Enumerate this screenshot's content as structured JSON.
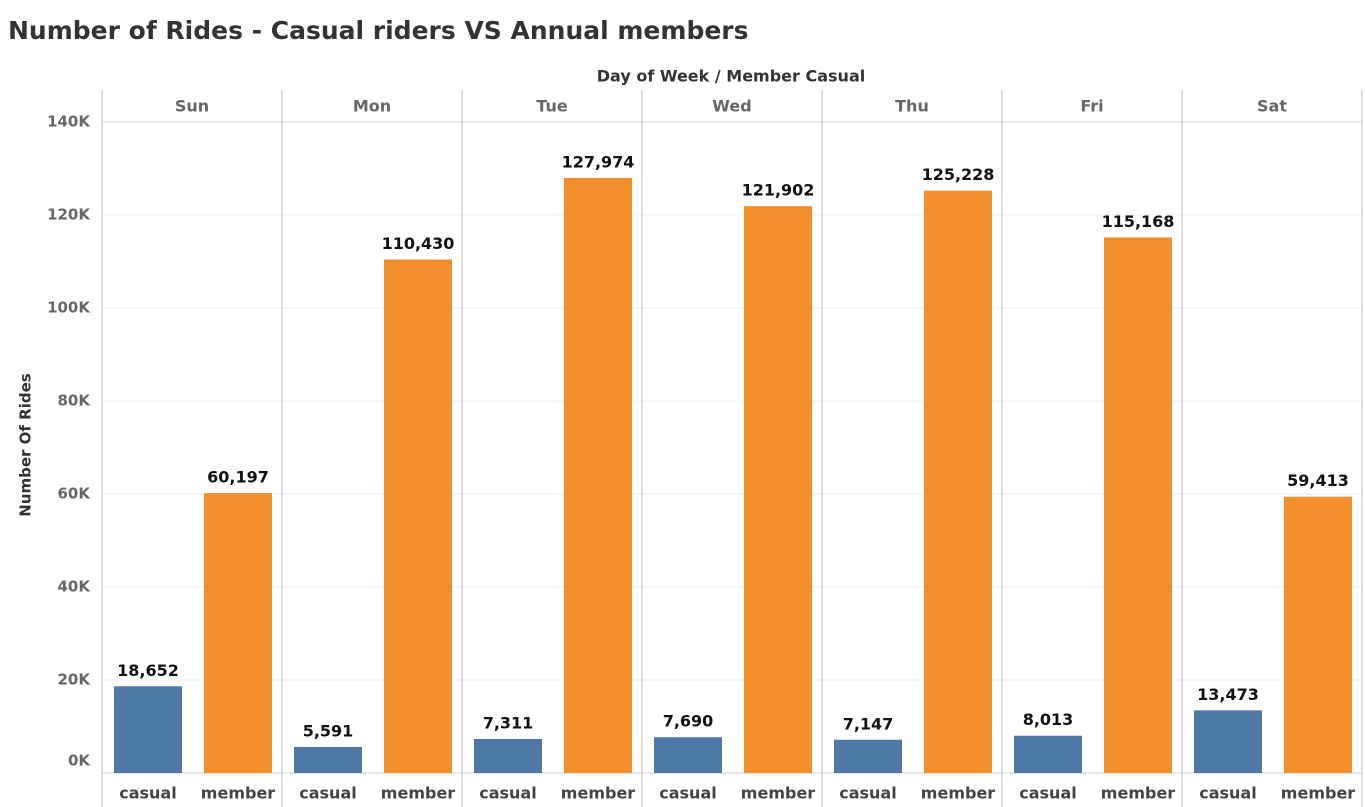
{
  "chart_data": {
    "type": "bar",
    "title": "Number of Rides - Casual riders VS Annual members",
    "header": "Day of Week  /  Member Casual",
    "y_label": "Number Of Rides",
    "categories": [
      "Sun",
      "Mon",
      "Tue",
      "Wed",
      "Thu",
      "Fri",
      "Sat"
    ],
    "series": [
      {
        "name": "casual",
        "color": "#4e79a7",
        "values": [
          18652,
          5591,
          7311,
          7690,
          7147,
          8013,
          13473
        ],
        "value_labels": [
          "18,652",
          "5,591",
          "7,311",
          "7,690",
          "7,147",
          "8,013",
          "13,473"
        ]
      },
      {
        "name": "member",
        "color": "#f28e2b",
        "values": [
          60197,
          110430,
          127974,
          121902,
          125228,
          115168,
          59413
        ],
        "value_labels": [
          "60,197",
          "110,430",
          "127,974",
          "121,902",
          "125,228",
          "115,168",
          "59,413"
        ]
      }
    ],
    "ylim": [
      0,
      140000
    ],
    "yticks": [
      {
        "value": 0,
        "label": "0K"
      },
      {
        "value": 20000,
        "label": "20K"
      },
      {
        "value": 40000,
        "label": "40K"
      },
      {
        "value": 60000,
        "label": "60K"
      },
      {
        "value": 80000,
        "label": "80K"
      },
      {
        "value": 100000,
        "label": "100K"
      },
      {
        "value": 120000,
        "label": "120K"
      },
      {
        "value": 140000,
        "label": "140K"
      }
    ],
    "grid": true
  }
}
